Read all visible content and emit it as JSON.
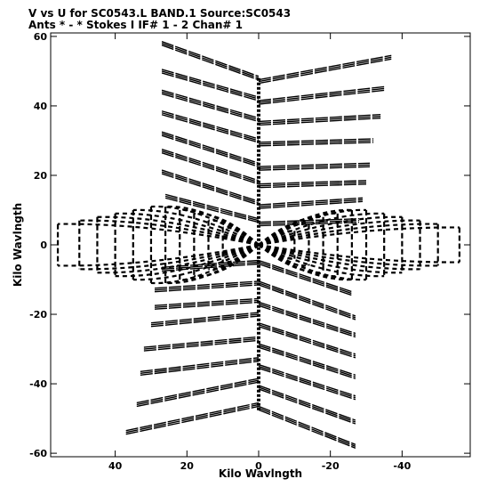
{
  "chart_data": {
    "type": "scatter",
    "title": "V vs U for SC0543.L BAND.1   Source:SC0543",
    "subtitle": "Ants * - *    Stokes I   IF# 1 - 2   Chan# 1",
    "xlabel": "Kilo Wavlngth",
    "ylabel": "Kilo Wavlngth",
    "xlim": [
      58,
      -59
    ],
    "ylim": [
      -61,
      61
    ],
    "x_ticks": [
      40,
      20,
      0,
      -20,
      -40
    ],
    "x_tick_labels": [
      "40",
      "20",
      "0",
      "-20",
      "-40"
    ],
    "y_ticks": [
      60,
      40,
      20,
      0,
      -20,
      -40,
      -60
    ],
    "y_tick_labels": [
      "60",
      "40",
      "20",
      "0",
      "-20",
      "-40",
      "-60"
    ],
    "grid": false,
    "color": "#000000",
    "uv_tracks": {
      "north_arms_left": [
        {
          "u0": 27,
          "v0": 58,
          "u1": 0,
          "v1": 48
        },
        {
          "u0": 27,
          "v0": 50,
          "u1": 0,
          "v1": 42
        },
        {
          "u0": 27,
          "v0": 44,
          "u1": 0,
          "v1": 36
        },
        {
          "u0": 27,
          "v0": 38,
          "u1": 0,
          "v1": 30
        },
        {
          "u0": 27,
          "v0": 32,
          "u1": 0,
          "v1": 23
        },
        {
          "u0": 27,
          "v0": 27,
          "u1": 0,
          "v1": 18
        },
        {
          "u0": 27,
          "v0": 21,
          "u1": 0,
          "v1": 12
        },
        {
          "u0": 26,
          "v0": 14,
          "u1": 0,
          "v1": 7
        }
      ],
      "north_arms_right": [
        {
          "u0": 0,
          "v0": 47,
          "u1": -37,
          "v1": 54
        },
        {
          "u0": 0,
          "v0": 41,
          "u1": -35,
          "v1": 45
        },
        {
          "u0": 0,
          "v0": 35,
          "u1": -34,
          "v1": 37
        },
        {
          "u0": 0,
          "v0": 29,
          "u1": -32,
          "v1": 30
        },
        {
          "u0": 0,
          "v0": 22,
          "u1": -31,
          "v1": 23
        },
        {
          "u0": 0,
          "v0": 17,
          "u1": -30,
          "v1": 18
        },
        {
          "u0": 0,
          "v0": 11,
          "u1": -29,
          "v1": 13
        },
        {
          "u0": 0,
          "v0": 6,
          "u1": -28,
          "v1": 7
        }
      ],
      "south_arms_left": [
        {
          "u0": 37,
          "v0": -54,
          "u1": 0,
          "v1": -46
        },
        {
          "u0": 34,
          "v0": -46,
          "u1": 0,
          "v1": -39
        },
        {
          "u0": 33,
          "v0": -37,
          "u1": 0,
          "v1": -33
        },
        {
          "u0": 32,
          "v0": -30,
          "u1": 0,
          "v1": -27
        },
        {
          "u0": 30,
          "v0": -23,
          "u1": 0,
          "v1": -20
        },
        {
          "u0": 29,
          "v0": -18,
          "u1": 0,
          "v1": -16
        },
        {
          "u0": 29,
          "v0": -13,
          "u1": 0,
          "v1": -11
        },
        {
          "u0": 27,
          "v0": -7,
          "u1": 0,
          "v1": -5
        }
      ],
      "south_arms_right": [
        {
          "u0": 0,
          "v0": -47,
          "u1": -27,
          "v1": -58
        },
        {
          "u0": 0,
          "v0": -41,
          "u1": -27,
          "v1": -51
        },
        {
          "u0": 0,
          "v0": -35,
          "u1": -27,
          "v1": -44
        },
        {
          "u0": 0,
          "v0": -29,
          "u1": -27,
          "v1": -38
        },
        {
          "u0": 0,
          "v0": -23,
          "u1": -27,
          "v1": -32
        },
        {
          "u0": 0,
          "v0": -17,
          "u1": -27,
          "v1": -26
        },
        {
          "u0": 0,
          "v0": -11,
          "u1": -27,
          "v1": -21
        },
        {
          "u0": 0,
          "v0": -5,
          "u1": -26,
          "v1": -14
        }
      ],
      "horizontal_fan_left": [
        {
          "u": 56,
          "vmax": 6
        },
        {
          "u": 50,
          "vmax": 7
        },
        {
          "u": 45,
          "vmax": 8
        },
        {
          "u": 40,
          "vmax": 9
        },
        {
          "u": 35,
          "vmax": 10
        },
        {
          "u": 30,
          "vmax": 11
        },
        {
          "u": 26,
          "vmax": 11
        },
        {
          "u": 22,
          "vmax": 10
        },
        {
          "u": 18,
          "vmax": 9
        },
        {
          "u": 14,
          "vmax": 7
        },
        {
          "u": 10,
          "vmax": 5
        }
      ],
      "horizontal_fan_right": [
        {
          "u": -56,
          "vmax": 5
        },
        {
          "u": -50,
          "vmax": 6
        },
        {
          "u": -45,
          "vmax": 7
        },
        {
          "u": -40,
          "vmax": 8
        },
        {
          "u": -35,
          "vmax": 9
        },
        {
          "u": -30,
          "vmax": 10
        },
        {
          "u": -26,
          "vmax": 10
        },
        {
          "u": -22,
          "vmax": 9
        },
        {
          "u": -18,
          "vmax": 8
        },
        {
          "u": -14,
          "vmax": 6
        },
        {
          "u": -10,
          "vmax": 4
        }
      ],
      "center_column": {
        "u": 0,
        "v_min": -48,
        "v_max": 48
      }
    }
  }
}
